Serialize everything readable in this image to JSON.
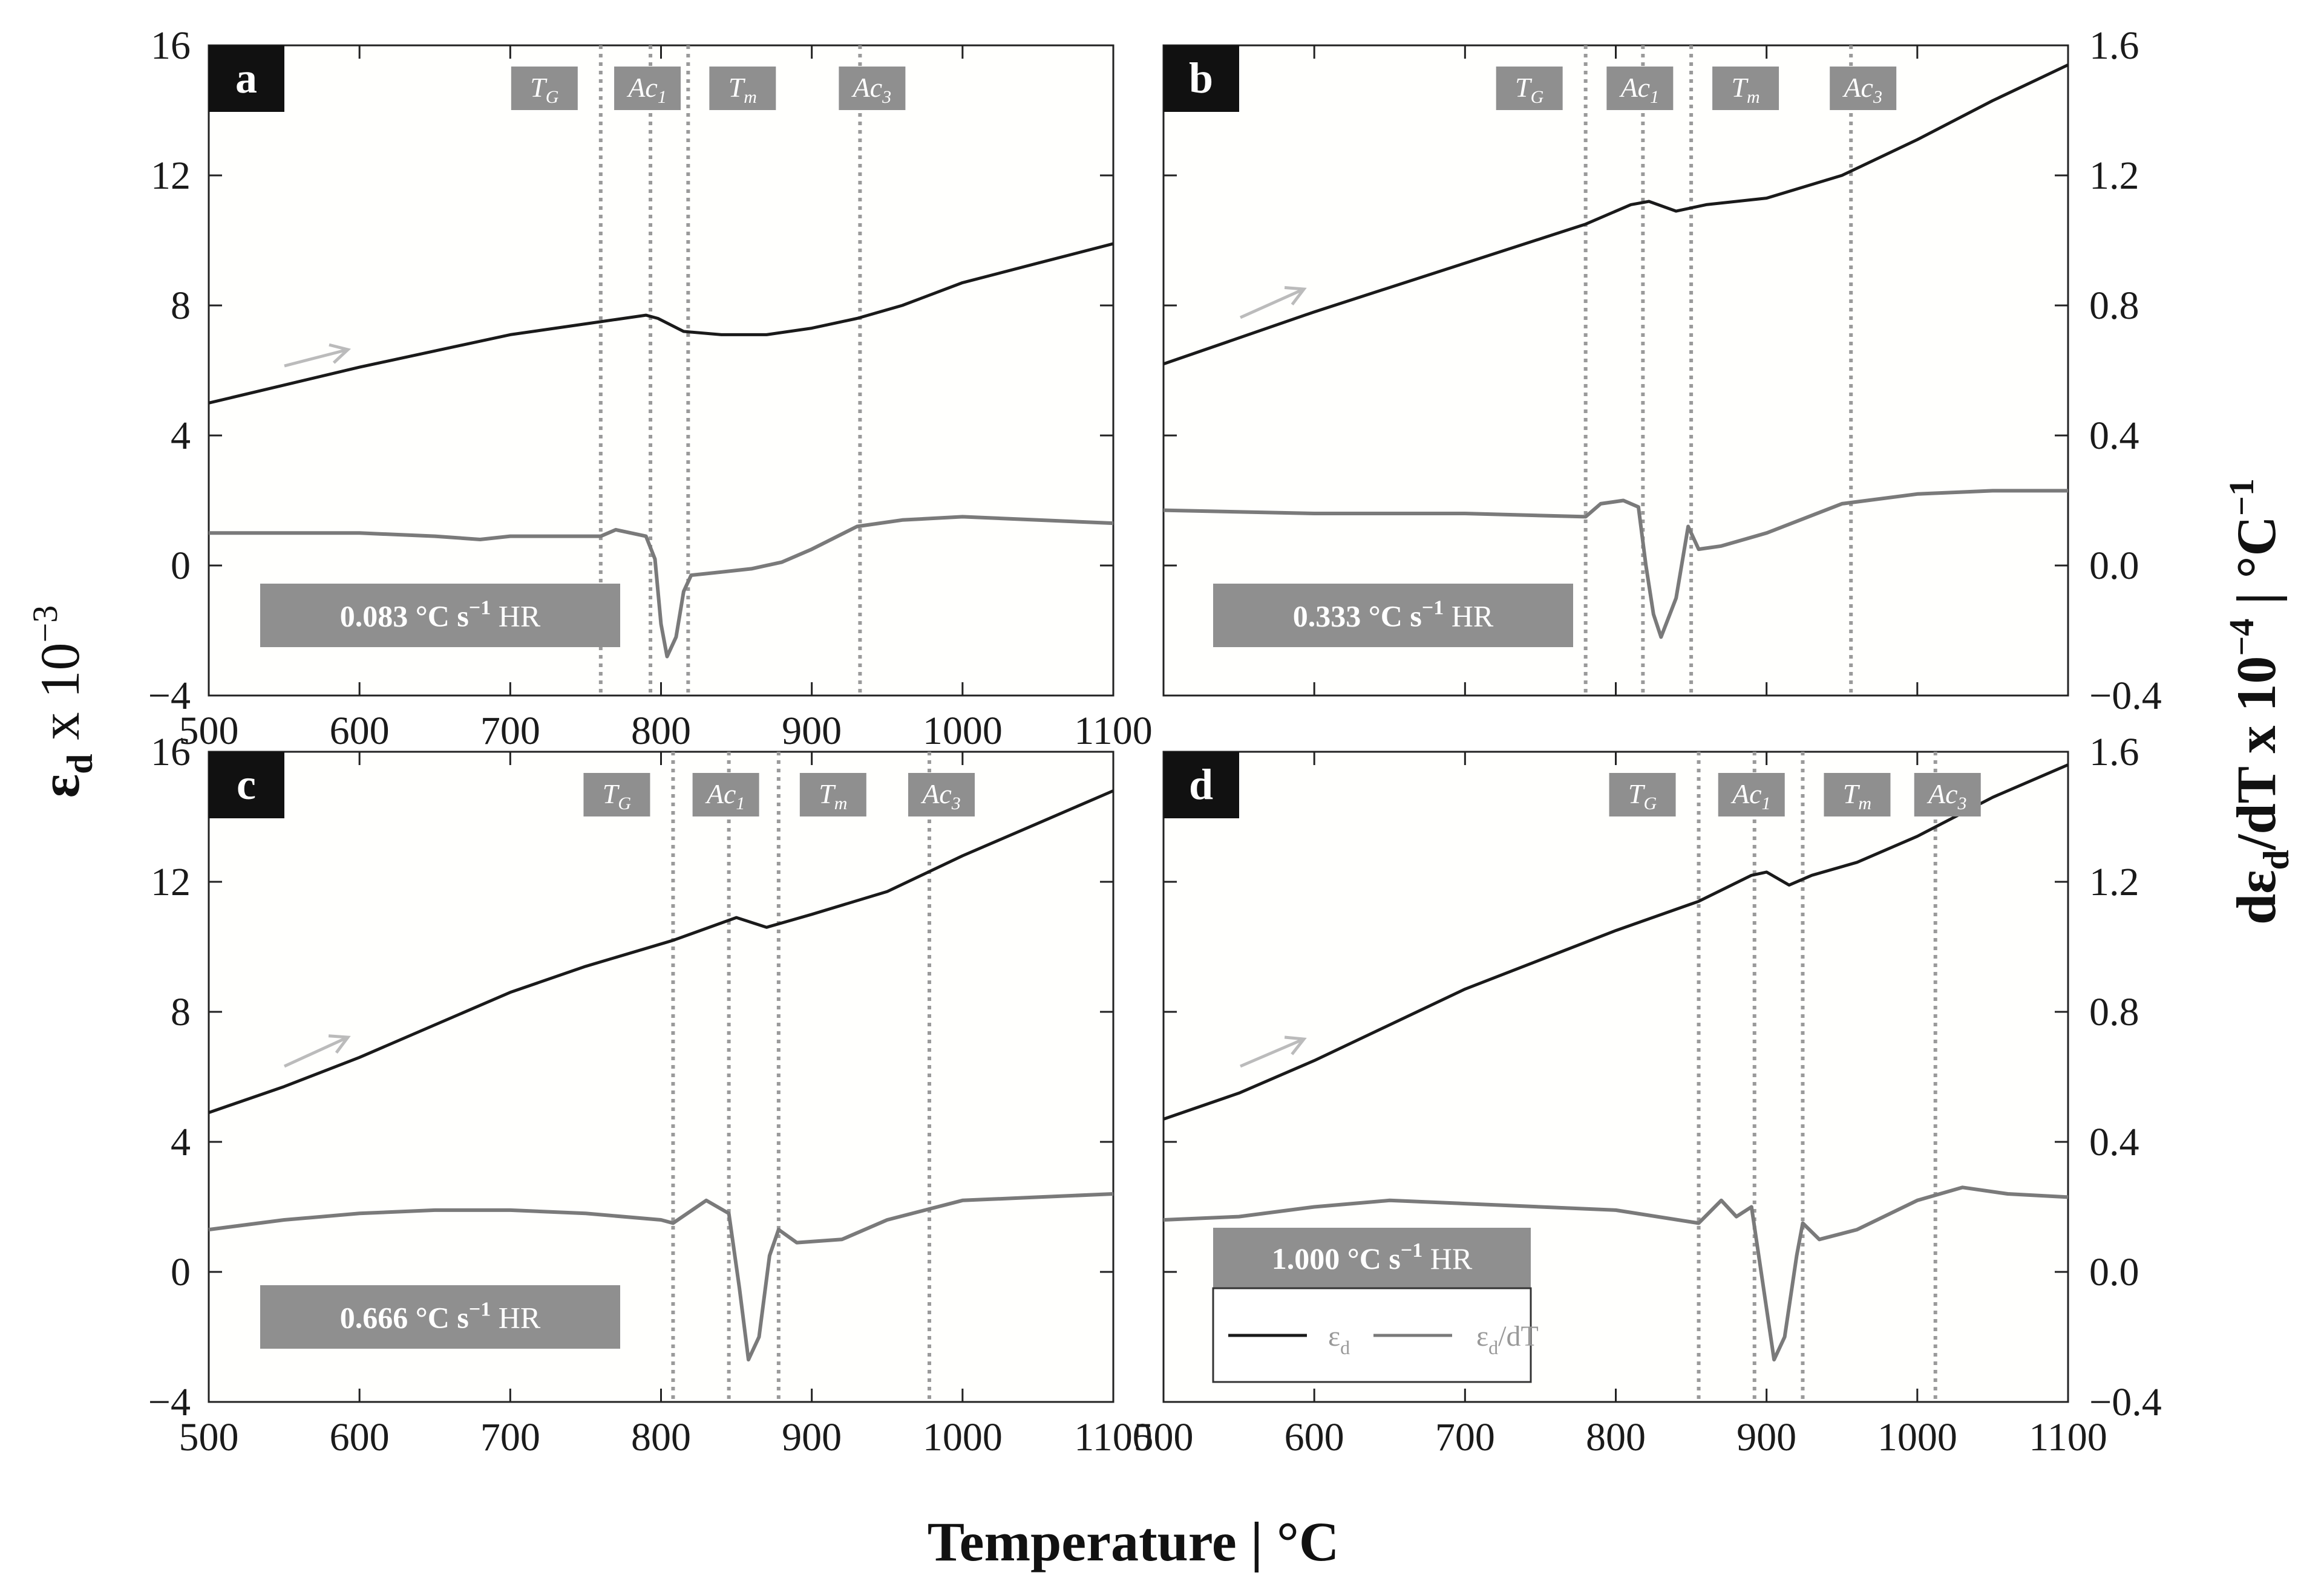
{
  "figure": {
    "xlabel": "Temperature | °C",
    "ylabel_left_base": "ε",
    "ylabel_left_sub": "d",
    "ylabel_left_rest": " x 10",
    "ylabel_left_exp": "−3",
    "ylabel_right_pre": "dε",
    "ylabel_right_sub": "d",
    "ylabel_right_mid": "/dT x 10",
    "ylabel_right_exp": "−4",
    "ylabel_right_unit": " | °C",
    "ylabel_right_unit_exp": "−1",
    "legend": {
      "strain_base": "ε",
      "strain_sub": "d",
      "deriv_base": "ε",
      "deriv_sub": "d",
      "deriv_rest": "/dT"
    },
    "colors": {
      "strain": "#1a1a1a",
      "derivative": "#7a7a7a",
      "marker_box": "#8f8f8f",
      "marker_line": "#9a9a9a",
      "arrow": "#bbbbbb"
    }
  },
  "chart_data": [
    {
      "panel": "a",
      "type": "line",
      "heating_rate_value": "0.083",
      "heating_rate_unit": "°C s",
      "heating_rate_exp": "−1",
      "heating_rate_suffix": " HR",
      "xlim": [
        500,
        1100
      ],
      "xticks": [
        500,
        600,
        700,
        800,
        900,
        1000,
        1100
      ],
      "ylim_left": [
        -4,
        16
      ],
      "yticks_left": [
        -4,
        0,
        4,
        8,
        12,
        16
      ],
      "ylim_right": [
        -0.4,
        1.6
      ],
      "yticks_right": [
        "−0.4",
        "0.0",
        "0.4",
        "0.8",
        "1.2",
        "1.6"
      ],
      "markers": [
        {
          "base": "T",
          "sub": "G",
          "x": 760
        },
        {
          "base": "Ac",
          "sub": "1",
          "x": 793
        },
        {
          "base": "T",
          "sub": "m",
          "x": 818
        },
        {
          "base": "Ac",
          "sub": "3",
          "x": 932
        }
      ],
      "series": [
        {
          "name": "strain",
          "axis": "left",
          "x": [
            500,
            600,
            700,
            760,
            790,
            798,
            815,
            840,
            870,
            900,
            930,
            960,
            1000,
            1050,
            1100
          ],
          "y": [
            5.0,
            6.1,
            7.1,
            7.5,
            7.7,
            7.6,
            7.2,
            7.1,
            7.1,
            7.3,
            7.6,
            8.0,
            8.7,
            9.3,
            9.9
          ]
        },
        {
          "name": "derivative",
          "axis": "right",
          "x": [
            500,
            550,
            600,
            650,
            680,
            700,
            750,
            760,
            770,
            790,
            796,
            800,
            804,
            810,
            815,
            820,
            840,
            860,
            880,
            900,
            930,
            960,
            1000,
            1050,
            1100
          ],
          "y": [
            0.1,
            0.1,
            0.1,
            0.09,
            0.08,
            0.09,
            0.09,
            0.09,
            0.11,
            0.09,
            0.02,
            -0.18,
            -0.28,
            -0.22,
            -0.08,
            -0.03,
            -0.02,
            -0.01,
            0.01,
            0.05,
            0.12,
            0.14,
            0.15,
            0.14,
            0.13
          ]
        }
      ]
    },
    {
      "panel": "b",
      "type": "line",
      "heating_rate_value": "0.333",
      "heating_rate_unit": "°C s",
      "heating_rate_exp": "−1",
      "heating_rate_suffix": " HR",
      "xlim": [
        500,
        1100
      ],
      "xticks": [
        500,
        600,
        700,
        800,
        900,
        1000,
        1100
      ],
      "ylim_left": [
        -4,
        16
      ],
      "yticks_left": [
        -4,
        0,
        4,
        8,
        12,
        16
      ],
      "ylim_right": [
        -0.4,
        1.6
      ],
      "yticks_right": [
        "−0.4",
        "0.0",
        "0.4",
        "0.8",
        "1.2",
        "1.6"
      ],
      "markers": [
        {
          "base": "T",
          "sub": "G",
          "x": 780
        },
        {
          "base": "Ac",
          "sub": "1",
          "x": 818
        },
        {
          "base": "T",
          "sub": "m",
          "x": 850
        },
        {
          "base": "Ac",
          "sub": "3",
          "x": 956
        }
      ],
      "series": [
        {
          "name": "strain",
          "axis": "left",
          "x": [
            500,
            600,
            700,
            780,
            810,
            822,
            840,
            860,
            900,
            950,
            1000,
            1050,
            1100
          ],
          "y": [
            6.2,
            7.8,
            9.3,
            10.5,
            11.1,
            11.2,
            10.9,
            11.1,
            11.3,
            12.0,
            13.1,
            14.3,
            15.4
          ]
        },
        {
          "name": "derivative",
          "axis": "right",
          "x": [
            500,
            600,
            700,
            780,
            790,
            805,
            815,
            820,
            825,
            830,
            840,
            848,
            855,
            870,
            900,
            950,
            1000,
            1050,
            1100
          ],
          "y": [
            0.17,
            0.16,
            0.16,
            0.15,
            0.19,
            0.2,
            0.18,
            0.0,
            -0.15,
            -0.22,
            -0.1,
            0.12,
            0.05,
            0.06,
            0.1,
            0.19,
            0.22,
            0.23,
            0.23
          ]
        }
      ]
    },
    {
      "panel": "c",
      "type": "line",
      "heating_rate_value": "0.666",
      "heating_rate_unit": "°C s",
      "heating_rate_exp": "−1",
      "heating_rate_suffix": " HR",
      "xlim": [
        500,
        1100
      ],
      "xticks": [
        500,
        600,
        700,
        800,
        900,
        1000,
        1100
      ],
      "ylim_left": [
        -4,
        16
      ],
      "yticks_left": [
        -4,
        0,
        4,
        8,
        12,
        16
      ],
      "ylim_right": [
        -0.4,
        1.6
      ],
      "yticks_right": [
        "−0.4",
        "0.0",
        "0.4",
        "0.8",
        "1.2",
        "1.6"
      ],
      "markers": [
        {
          "base": "T",
          "sub": "G",
          "x": 808
        },
        {
          "base": "Ac",
          "sub": "1",
          "x": 845
        },
        {
          "base": "T",
          "sub": "m",
          "x": 878
        },
        {
          "base": "Ac",
          "sub": "3",
          "x": 978
        }
      ],
      "series": [
        {
          "name": "strain",
          "axis": "left",
          "x": [
            500,
            550,
            600,
            650,
            700,
            750,
            808,
            850,
            870,
            900,
            950,
            1000,
            1050,
            1100
          ],
          "y": [
            4.9,
            5.7,
            6.6,
            7.6,
            8.6,
            9.4,
            10.2,
            10.9,
            10.6,
            11.0,
            11.7,
            12.8,
            13.8,
            14.8
          ]
        },
        {
          "name": "derivative",
          "axis": "right",
          "x": [
            500,
            550,
            600,
            650,
            700,
            750,
            800,
            808,
            830,
            845,
            852,
            858,
            865,
            872,
            878,
            890,
            920,
            950,
            1000,
            1050,
            1100
          ],
          "y": [
            0.13,
            0.16,
            0.18,
            0.19,
            0.19,
            0.18,
            0.16,
            0.15,
            0.22,
            0.18,
            -0.05,
            -0.27,
            -0.2,
            0.05,
            0.13,
            0.09,
            0.1,
            0.16,
            0.22,
            0.23,
            0.24
          ]
        }
      ]
    },
    {
      "panel": "d",
      "type": "line",
      "heating_rate_value": "1.000",
      "heating_rate_unit": "°C s",
      "heating_rate_exp": "−1",
      "heating_rate_suffix": " HR",
      "xlim": [
        500,
        1100
      ],
      "xticks": [
        500,
        600,
        700,
        800,
        900,
        1000,
        1100
      ],
      "ylim_left": [
        -4,
        16
      ],
      "yticks_left": [
        -4,
        0,
        4,
        8,
        12,
        16
      ],
      "ylim_right": [
        -0.4,
        1.6
      ],
      "yticks_right": [
        "−0.4",
        "0.0",
        "0.4",
        "0.8",
        "1.2",
        "1.6"
      ],
      "markers": [
        {
          "base": "T",
          "sub": "G",
          "x": 855
        },
        {
          "base": "Ac",
          "sub": "1",
          "x": 892
        },
        {
          "base": "T",
          "sub": "m",
          "x": 924
        },
        {
          "base": "Ac",
          "sub": "3",
          "x": 1012
        }
      ],
      "series": [
        {
          "name": "strain",
          "axis": "left",
          "x": [
            500,
            550,
            600,
            650,
            700,
            750,
            800,
            855,
            890,
            900,
            915,
            930,
            960,
            1000,
            1050,
            1100
          ],
          "y": [
            4.7,
            5.5,
            6.5,
            7.6,
            8.7,
            9.6,
            10.5,
            11.4,
            12.2,
            12.3,
            11.9,
            12.2,
            12.6,
            13.4,
            14.6,
            15.6
          ]
        },
        {
          "name": "derivative",
          "axis": "right",
          "x": [
            500,
            550,
            600,
            650,
            700,
            750,
            800,
            855,
            870,
            880,
            890,
            898,
            905,
            912,
            920,
            924,
            935,
            960,
            1000,
            1030,
            1060,
            1100
          ],
          "y": [
            0.16,
            0.17,
            0.2,
            0.22,
            0.21,
            0.2,
            0.19,
            0.15,
            0.22,
            0.17,
            0.2,
            -0.05,
            -0.27,
            -0.2,
            0.05,
            0.15,
            0.1,
            0.13,
            0.22,
            0.26,
            0.24,
            0.23
          ]
        }
      ]
    }
  ]
}
